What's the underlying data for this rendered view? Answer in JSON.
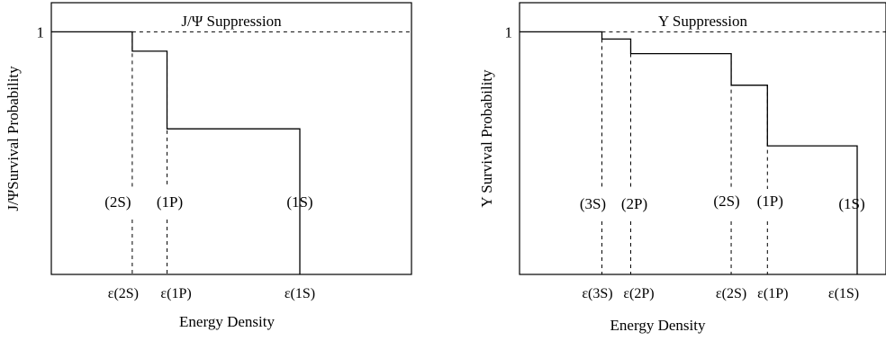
{
  "chart_data": [
    {
      "type": "line",
      "title": "J/Ψ Suppression",
      "xlabel": "Energy Density",
      "ylabel": "J/ΨSurvival Probability",
      "y_tick_label": "1",
      "reference_line": {
        "y": 1,
        "style": "dashed"
      },
      "grid": false,
      "thresholds": [
        {
          "state": "(2S)",
          "tick_label": "ε(2S)",
          "x": 1.0
        },
        {
          "state": "(1P)",
          "tick_label": "ε(1P)",
          "x": 1.43
        },
        {
          "state": "(1S)",
          "tick_label": "ε(1S)",
          "x": 3.07
        }
      ],
      "series": [
        {
          "x": [
            0,
            1.0,
            1.0,
            1.43,
            1.43,
            3.07,
            3.07
          ],
          "y": [
            1.0,
            1.0,
            0.92,
            0.92,
            0.6,
            0.6,
            0.0
          ]
        }
      ],
      "xlim": [
        0,
        4.45
      ],
      "ylim": [
        0,
        1.12
      ]
    },
    {
      "type": "line",
      "title": "Υ Suppression",
      "xlabel": "Energy Density",
      "ylabel": "Υ Survival Probability",
      "y_tick_label": "1",
      "reference_line": {
        "y": 1,
        "style": "dashed"
      },
      "grid": false,
      "thresholds": [
        {
          "state": "(3S)",
          "tick_label": "ε(3S)",
          "x": 1.0
        },
        {
          "state": "(2P)",
          "tick_label": "ε(2P)",
          "x": 1.35
        },
        {
          "state": "(2S)",
          "tick_label": "ε(2S)",
          "x": 2.57
        },
        {
          "state": "(1P)",
          "tick_label": "ε(1P)",
          "x": 3.01
        },
        {
          "state": "(1S)",
          "tick_label": "ε(1S)",
          "x": 4.1
        }
      ],
      "series": [
        {
          "x": [
            0,
            1.0,
            1.0,
            1.35,
            1.35,
            2.57,
            2.57,
            3.01,
            3.01,
            4.1,
            4.1
          ],
          "y": [
            1.0,
            1.0,
            0.97,
            0.97,
            0.91,
            0.91,
            0.78,
            0.78,
            0.53,
            0.53,
            0.0
          ]
        }
      ],
      "xlim": [
        0,
        4.45
      ],
      "ylim": [
        0,
        1.12
      ]
    }
  ]
}
